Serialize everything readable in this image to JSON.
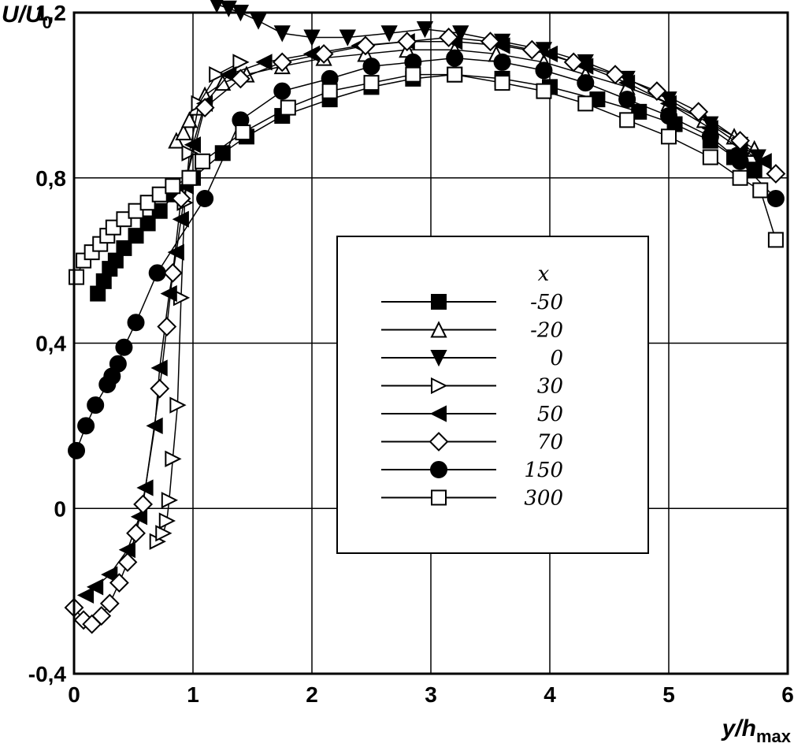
{
  "chart_data": {
    "type": "line",
    "title": "",
    "xlabel": {
      "main": "y/h",
      "sub": "max"
    },
    "ylabel": {
      "main": "U/U",
      "sub": "0"
    },
    "xlim": [
      0,
      6
    ],
    "ylim": [
      -0.4,
      1.2
    ],
    "x_ticks": [
      "0",
      "1",
      "2",
      "3",
      "4",
      "5",
      "6"
    ],
    "y_ticks": [
      "-0,4",
      "0",
      "0,4",
      "0,8",
      "1,2"
    ],
    "grid": true,
    "legend": {
      "title": "x",
      "placement": "center-right"
    },
    "series": [
      {
        "name": "-50",
        "marker": "square-filled",
        "x": [
          0.2,
          0.25,
          0.3,
          0.35,
          0.42,
          0.52,
          0.62,
          0.72,
          0.85,
          1.0,
          1.25,
          1.45,
          1.75,
          2.15,
          2.5,
          2.85,
          3.2,
          3.6,
          4.0,
          4.4,
          4.75,
          5.05,
          5.35,
          5.55,
          5.72
        ],
        "y": [
          0.52,
          0.55,
          0.58,
          0.6,
          0.63,
          0.66,
          0.69,
          0.72,
          0.76,
          0.8,
          0.86,
          0.9,
          0.95,
          0.99,
          1.02,
          1.04,
          1.05,
          1.04,
          1.02,
          0.99,
          0.96,
          0.93,
          0.89,
          0.85,
          0.82
        ]
      },
      {
        "name": "-20",
        "marker": "triangle-up-open",
        "x": [
          0.86,
          0.92,
          0.97,
          1.03,
          1.1,
          1.25,
          1.45,
          1.75,
          2.1,
          2.45,
          2.8,
          3.2,
          3.55,
          3.95,
          4.3,
          4.65,
          5.0,
          5.3,
          5.55,
          5.72
        ],
        "y": [
          0.89,
          0.91,
          0.94,
          0.97,
          1.0,
          1.03,
          1.05,
          1.07,
          1.09,
          1.1,
          1.11,
          1.11,
          1.1,
          1.08,
          1.05,
          1.02,
          0.98,
          0.94,
          0.9,
          0.87
        ]
      },
      {
        "name": "0",
        "marker": "triangle-down-filled",
        "x": [
          1.2,
          1.3,
          1.4,
          1.55,
          1.75,
          2.0,
          2.3,
          2.65,
          2.95,
          3.25,
          3.6,
          3.95,
          4.3,
          4.65,
          5.0,
          5.35,
          5.6,
          5.75
        ],
        "y": [
          1.22,
          1.21,
          1.2,
          1.18,
          1.15,
          1.14,
          1.14,
          1.15,
          1.16,
          1.15,
          1.13,
          1.11,
          1.08,
          1.04,
          0.99,
          0.93,
          0.88,
          0.85
        ]
      },
      {
        "name": "30",
        "marker": "triangle-right-open",
        "x": [
          0.7,
          0.75,
          0.78,
          0.8,
          0.83,
          0.87,
          0.9,
          0.93,
          0.97,
          1.05,
          1.2,
          1.4
        ],
        "y": [
          -0.08,
          -0.06,
          -0.03,
          0.02,
          0.12,
          0.25,
          0.51,
          0.74,
          0.86,
          0.98,
          1.05,
          1.08
        ]
      },
      {
        "name": "50",
        "marker": "triangle-left-filled",
        "x": [
          0.1,
          0.18,
          0.3,
          0.45,
          0.55,
          0.6,
          0.68,
          0.72,
          0.8,
          0.86,
          0.9,
          0.94,
          1.0,
          1.1,
          1.3,
          1.6,
          2.0,
          2.4,
          2.8,
          3.2,
          3.6,
          4.0,
          4.3,
          4.65,
          5.0,
          5.35,
          5.6,
          5.8
        ],
        "y": [
          -0.21,
          -0.19,
          -0.16,
          -0.1,
          -0.02,
          0.05,
          0.2,
          0.34,
          0.52,
          0.62,
          0.7,
          0.78,
          0.88,
          0.98,
          1.05,
          1.08,
          1.1,
          1.12,
          1.13,
          1.13,
          1.12,
          1.1,
          1.07,
          1.03,
          0.98,
          0.92,
          0.87,
          0.84
        ]
      },
      {
        "name": "70",
        "marker": "diamond-open",
        "x": [
          0.0,
          0.08,
          0.15,
          0.23,
          0.3,
          0.38,
          0.45,
          0.52,
          0.58,
          0.72,
          0.78,
          0.83,
          0.9,
          1.1,
          1.4,
          1.75,
          2.1,
          2.45,
          2.8,
          3.15,
          3.5,
          3.85,
          4.2,
          4.55,
          4.9,
          5.25,
          5.6,
          5.9
        ],
        "y": [
          -0.24,
          -0.27,
          -0.28,
          -0.26,
          -0.23,
          -0.18,
          -0.13,
          -0.06,
          0.01,
          0.29,
          0.44,
          0.57,
          0.75,
          0.97,
          1.04,
          1.08,
          1.1,
          1.12,
          1.13,
          1.14,
          1.13,
          1.11,
          1.08,
          1.05,
          1.01,
          0.96,
          0.89,
          0.81
        ]
      },
      {
        "name": "150",
        "marker": "circle-filled",
        "x": [
          0.02,
          0.1,
          0.18,
          0.28,
          0.32,
          0.37,
          0.42,
          0.52,
          0.7,
          1.1,
          1.4,
          1.75,
          2.15,
          2.5,
          2.85,
          3.2,
          3.6,
          3.95,
          4.3,
          4.65,
          5.0,
          5.35,
          5.6,
          5.9
        ],
        "y": [
          0.14,
          0.2,
          0.25,
          0.3,
          0.32,
          0.35,
          0.39,
          0.45,
          0.57,
          0.75,
          0.94,
          1.01,
          1.04,
          1.07,
          1.08,
          1.09,
          1.08,
          1.06,
          1.03,
          0.99,
          0.95,
          0.9,
          0.84,
          0.75
        ]
      },
      {
        "name": "300",
        "marker": "square-open",
        "x": [
          0.02,
          0.08,
          0.15,
          0.22,
          0.28,
          0.33,
          0.42,
          0.52,
          0.62,
          0.72,
          0.83,
          0.97,
          1.08,
          1.42,
          1.8,
          2.15,
          2.5,
          2.85,
          3.2,
          3.6,
          3.95,
          4.3,
          4.65,
          5.0,
          5.35,
          5.6,
          5.77,
          5.9
        ],
        "y": [
          0.56,
          0.6,
          0.62,
          0.64,
          0.66,
          0.68,
          0.7,
          0.72,
          0.74,
          0.76,
          0.78,
          0.8,
          0.84,
          0.91,
          0.97,
          1.01,
          1.03,
          1.05,
          1.05,
          1.03,
          1.01,
          0.98,
          0.94,
          0.9,
          0.85,
          0.8,
          0.77,
          0.65
        ]
      }
    ]
  }
}
